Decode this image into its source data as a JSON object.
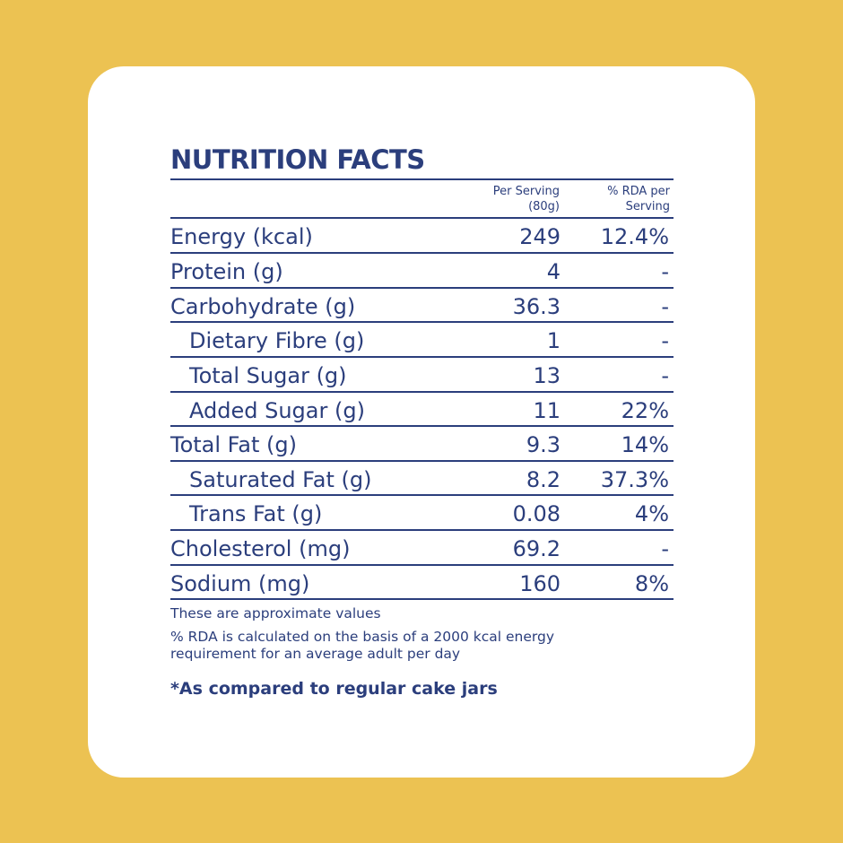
{
  "title": "NUTRITION FACTS",
  "columns": {
    "serving": [
      "Per Serving",
      "(80g)"
    ],
    "rda": [
      "% RDA per",
      "Serving"
    ]
  },
  "rows": [
    {
      "label": "Energy (kcal)",
      "value": "249",
      "rda": "12.4%"
    },
    {
      "label": "Protein (g)",
      "value": "4",
      "rda": "-"
    },
    {
      "label": "Carbohydrate (g)",
      "value": "36.3",
      "rda": "-"
    },
    {
      "label": "Dietary Fibre (g)",
      "value": "1",
      "rda": "-"
    },
    {
      "label": "Total Sugar (g)",
      "value": "13",
      "rda": "-"
    },
    {
      "label": "Added Sugar (g)",
      "value": "11",
      "rda": "22%"
    },
    {
      "label": "Total Fat (g)",
      "value": "9.3",
      "rda": "14%"
    },
    {
      "label": "Saturated Fat (g)",
      "value": "8.2",
      "rda": "37.3%"
    },
    {
      "label": "Trans Fat (g)",
      "value": "0.08",
      "rda": "4%"
    },
    {
      "label": "Cholesterol (mg)",
      "value": "69.2",
      "rda": "-"
    },
    {
      "label": "Sodium (mg)",
      "value": "160",
      "rda": "8%"
    }
  ],
  "notes": {
    "approx": "These are approximate values",
    "rda_line1": "%  RDA is calculated on the basis of a 2000 kcal energy",
    "rda_line2": "requirement for an average adult per day"
  },
  "comparison": "*As compared to regular cake jars",
  "colors": {
    "background": "#ECC252",
    "card": "#FFFFFF",
    "text": "#2B3E7C"
  }
}
